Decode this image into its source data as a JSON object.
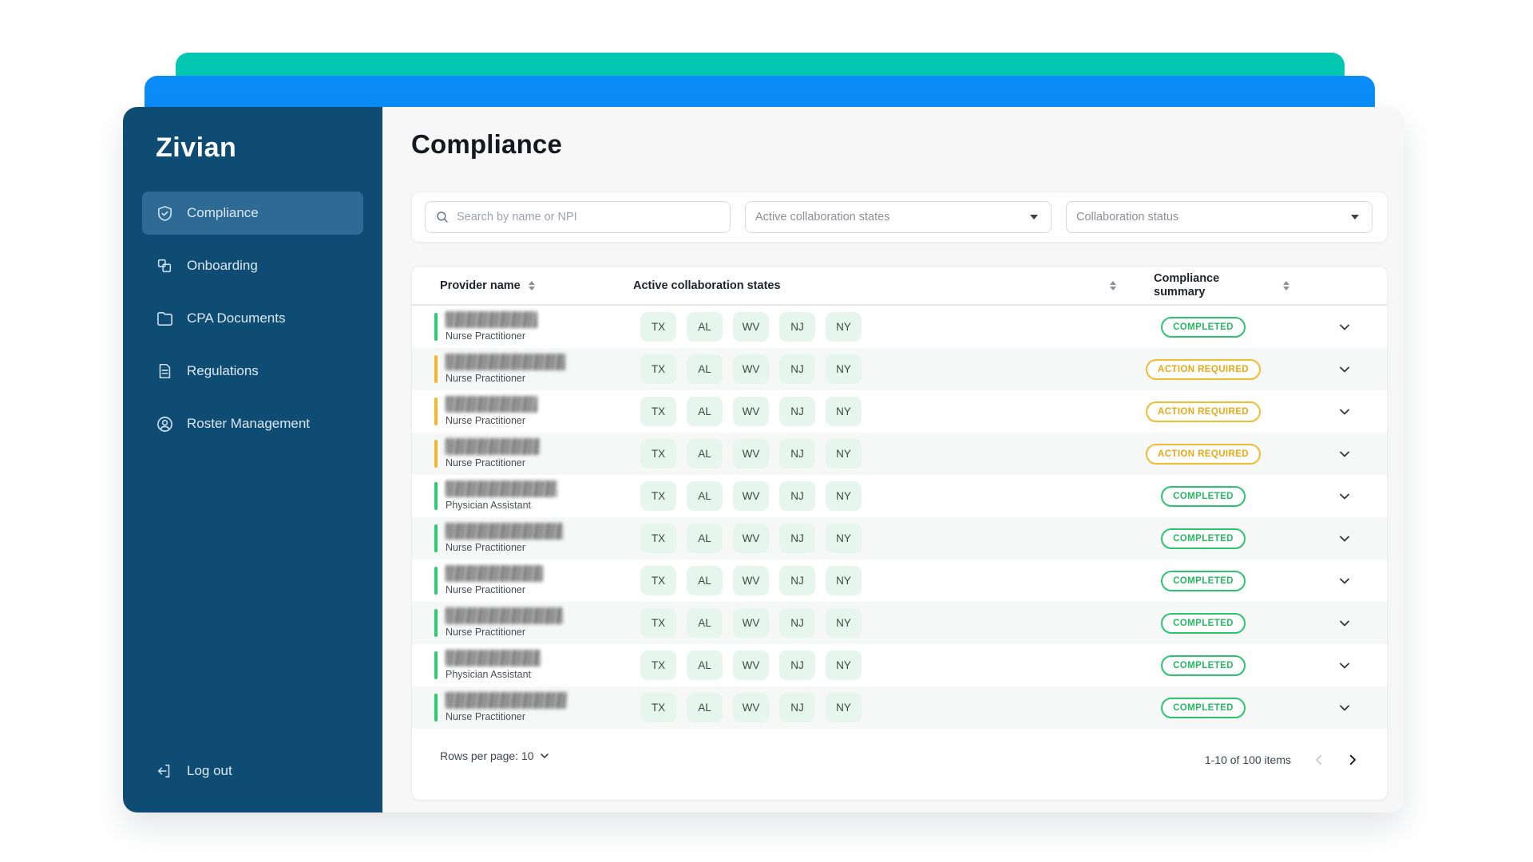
{
  "brand": {
    "logo_text": "Zivian"
  },
  "sidebar": {
    "items": [
      {
        "label": "Compliance",
        "icon": "shield-check-icon",
        "active": true
      },
      {
        "label": "Onboarding",
        "icon": "onboarding-icon",
        "active": false
      },
      {
        "label": "CPA Documents",
        "icon": "folder-icon",
        "active": false
      },
      {
        "label": "Regulations",
        "icon": "regulations-doc-icon",
        "active": false
      },
      {
        "label": "Roster Management",
        "icon": "user-circle-icon",
        "active": false
      }
    ],
    "logout_label": "Log out"
  },
  "header": {
    "title": "Compliance"
  },
  "filters": {
    "search_placeholder": "Search by name or NPI",
    "dropdowns": [
      {
        "label": "Active collaboration states"
      },
      {
        "label": "Collaboration status"
      }
    ]
  },
  "table": {
    "columns": [
      {
        "label": "Provider name",
        "sortable": true
      },
      {
        "label": "Active collaboration states",
        "sortable": true
      },
      {
        "label": "Compliance summary",
        "sortable": true
      }
    ],
    "rows": [
      {
        "name_redacted": true,
        "name_width": 115,
        "role": "Nurse Practitioner",
        "states": [
          "TX",
          "AL",
          "WV",
          "NJ",
          "NY"
        ],
        "status": "COMPLETED"
      },
      {
        "name_redacted": true,
        "name_width": 150,
        "role": "Nurse Practitioner",
        "states": [
          "TX",
          "AL",
          "WV",
          "NJ",
          "NY"
        ],
        "status": "ACTION REQUIRED"
      },
      {
        "name_redacted": true,
        "name_width": 115,
        "role": "Nurse Practitioner",
        "states": [
          "TX",
          "AL",
          "WV",
          "NJ",
          "NY"
        ],
        "status": "ACTION REQUIRED"
      },
      {
        "name_redacted": true,
        "name_width": 118,
        "role": "Nurse Practitioner",
        "states": [
          "TX",
          "AL",
          "WV",
          "NJ",
          "NY"
        ],
        "status": "ACTION REQUIRED"
      },
      {
        "name_redacted": true,
        "name_width": 140,
        "role": "Physician Assistant",
        "states": [
          "TX",
          "AL",
          "WV",
          "NJ",
          "NY"
        ],
        "status": "COMPLETED"
      },
      {
        "name_redacted": true,
        "name_width": 147,
        "role": "Nurse Practitioner",
        "states": [
          "TX",
          "AL",
          "WV",
          "NJ",
          "NY"
        ],
        "status": "COMPLETED"
      },
      {
        "name_redacted": true,
        "name_width": 122,
        "role": "Nurse Practitioner",
        "states": [
          "TX",
          "AL",
          "WV",
          "NJ",
          "NY"
        ],
        "status": "COMPLETED"
      },
      {
        "name_redacted": true,
        "name_width": 147,
        "role": "Nurse Practitioner",
        "states": [
          "TX",
          "AL",
          "WV",
          "NJ",
          "NY"
        ],
        "status": "COMPLETED"
      },
      {
        "name_redacted": true,
        "name_width": 119,
        "role": "Physician Assistant",
        "states": [
          "TX",
          "AL",
          "WV",
          "NJ",
          "NY"
        ],
        "status": "COMPLETED"
      },
      {
        "name_redacted": true,
        "name_width": 152,
        "role": "Nurse Practitioner",
        "states": [
          "TX",
          "AL",
          "WV",
          "NJ",
          "NY"
        ],
        "status": "COMPLETED"
      }
    ]
  },
  "pagination": {
    "rows_per_page_label": "Rows per page:",
    "rows_per_page_value": "10",
    "range_label": "1-10 of 100 items",
    "prev_enabled": false,
    "next_enabled": true
  },
  "colors": {
    "teal_bar": "#02c8b2",
    "blue_bar": "#0a8df8",
    "sidebar": "#0f4c74",
    "sidebar_active": "#2e6b94",
    "status": {
      "COMPLETED": {
        "border": "#2bc56d",
        "text": "#27b863",
        "bar": "#2ecc71"
      },
      "ACTION REQUIRED": {
        "border": "#f2bc30",
        "text": "#e9a816",
        "bar": "#f3b72f"
      }
    },
    "chip_bg": "#e6f6ee"
  }
}
